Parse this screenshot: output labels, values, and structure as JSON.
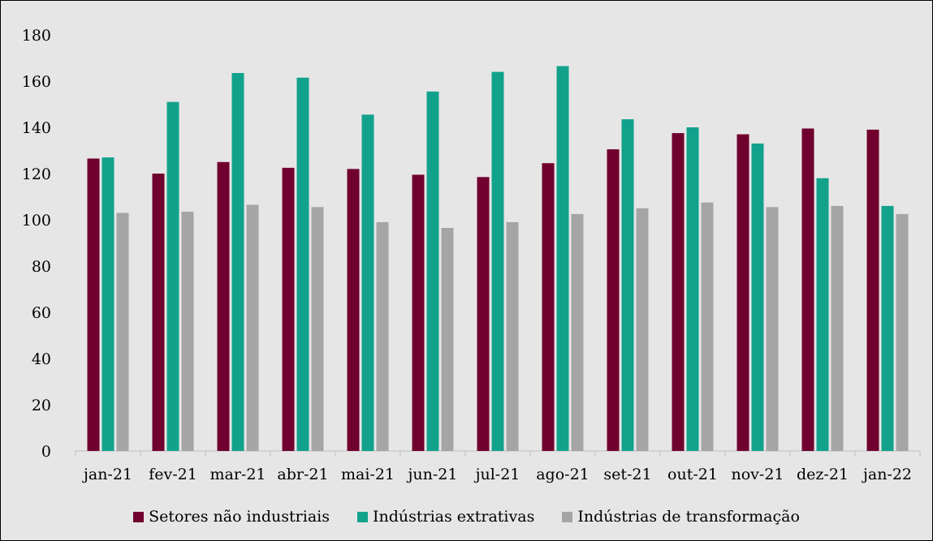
{
  "chart_data": {
    "type": "bar",
    "title": "",
    "xlabel": "",
    "ylabel": "",
    "ylim": [
      0,
      180
    ],
    "yticks": [
      0,
      20,
      40,
      60,
      80,
      100,
      120,
      140,
      160,
      180
    ],
    "grid": false,
    "legend_position": "bottom",
    "categories": [
      "jan-21",
      "fev-21",
      "mar-21",
      "abr-21",
      "mai-21",
      "jun-21",
      "jul-21",
      "ago-21",
      "set-21",
      "out-21",
      "nov-21",
      "dez-21",
      "jan-22"
    ],
    "series": [
      {
        "name": "Setores não industriais",
        "color": "#70012f",
        "values": [
          126.5,
          120,
          125,
          122.5,
          122,
          119.5,
          118.5,
          124.5,
          130.5,
          137.5,
          137,
          139.5,
          139
        ]
      },
      {
        "name": "Indústrias extrativas",
        "color": "#12a28c",
        "values": [
          127,
          151,
          163.5,
          161.5,
          145.5,
          155.5,
          164,
          166.5,
          143.5,
          140,
          133,
          118,
          106
        ]
      },
      {
        "name": "Indústrias de transformação",
        "color": "#a5a5a5",
        "values": [
          103,
          103.5,
          106.5,
          105.5,
          99,
          96.5,
          99,
          102.5,
          105,
          107.5,
          105.5,
          106,
          102.5
        ]
      }
    ]
  }
}
